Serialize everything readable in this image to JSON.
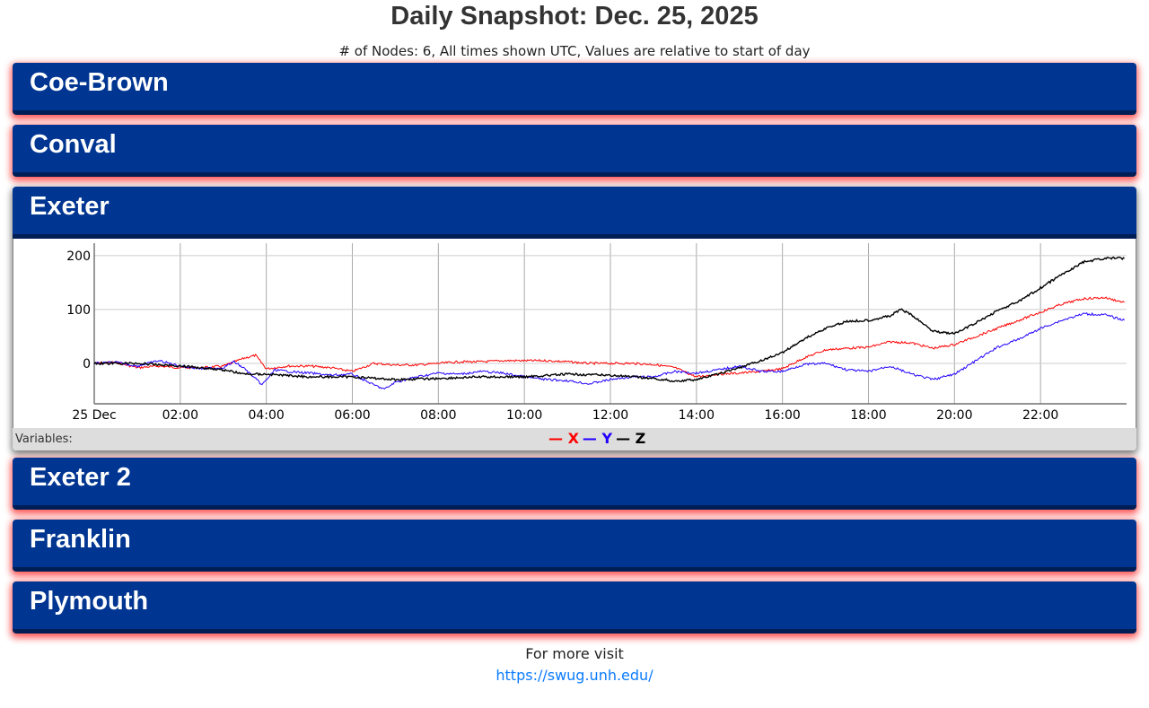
{
  "page": {
    "title": "Daily Snapshot: Dec. 25, 2025",
    "subtitle": "# of Nodes: 6, All times shown UTC, Values are relative to start of day",
    "footer_text": "For more visit",
    "footer_link": "https://swug.unh.edu/"
  },
  "nodes": [
    {
      "name": "Coe-Brown"
    },
    {
      "name": "Conval"
    },
    {
      "name": "Exeter",
      "expanded": true
    },
    {
      "name": "Exeter 2"
    },
    {
      "name": "Franklin"
    },
    {
      "name": "Plymouth"
    }
  ],
  "legend": {
    "label": "Variables:",
    "items": [
      {
        "name": "X",
        "color": "#ff0000"
      },
      {
        "name": "Y",
        "color": "#2200ff"
      },
      {
        "name": "Z",
        "color": "#000000"
      }
    ]
  },
  "chart_data": {
    "type": "line",
    "title": "Exeter",
    "xlabel": "",
    "ylabel": "",
    "x_unit": "hours UTC",
    "xlim": [
      0,
      24
    ],
    "ylim": [
      -75,
      223
    ],
    "x_ticks": [
      {
        "v": 0,
        "label": "25 Dec"
      },
      {
        "v": 2,
        "label": "02:00"
      },
      {
        "v": 4,
        "label": "04:00"
      },
      {
        "v": 6,
        "label": "06:00"
      },
      {
        "v": 8,
        "label": "08:00"
      },
      {
        "v": 10,
        "label": "10:00"
      },
      {
        "v": 12,
        "label": "12:00"
      },
      {
        "v": 14,
        "label": "14:00"
      },
      {
        "v": 16,
        "label": "16:00"
      },
      {
        "v": 18,
        "label": "18:00"
      },
      {
        "v": 20,
        "label": "20:00"
      },
      {
        "v": 22,
        "label": "22:00"
      }
    ],
    "y_ticks": [
      {
        "v": 0,
        "label": "0"
      },
      {
        "v": 100,
        "label": "100"
      },
      {
        "v": 200,
        "label": "200"
      }
    ],
    "grid": true,
    "series": [
      {
        "name": "X",
        "color": "#ff0000",
        "points": [
          [
            0,
            0
          ],
          [
            0.5,
            2
          ],
          [
            1,
            -8
          ],
          [
            1.5,
            -5
          ],
          [
            2,
            -8
          ],
          [
            2.5,
            -8
          ],
          [
            3,
            -5
          ],
          [
            3.5,
            10
          ],
          [
            3.75,
            15
          ],
          [
            4,
            -10
          ],
          [
            4.5,
            -5
          ],
          [
            5,
            -5
          ],
          [
            5.5,
            -8
          ],
          [
            6,
            -15
          ],
          [
            6.5,
            0
          ],
          [
            7,
            -3
          ],
          [
            7.5,
            -3
          ],
          [
            8,
            0
          ],
          [
            8.5,
            3
          ],
          [
            9,
            3
          ],
          [
            9.5,
            5
          ],
          [
            10,
            5
          ],
          [
            10.5,
            5
          ],
          [
            11,
            3
          ],
          [
            11.5,
            0
          ],
          [
            12,
            0
          ],
          [
            12.5,
            0
          ],
          [
            13,
            -2
          ],
          [
            13.5,
            -8
          ],
          [
            14,
            -25
          ],
          [
            14.5,
            -20
          ],
          [
            15,
            -18
          ],
          [
            15.5,
            -15
          ],
          [
            16,
            -10
          ],
          [
            16.5,
            10
          ],
          [
            17,
            25
          ],
          [
            17.5,
            28
          ],
          [
            18,
            30
          ],
          [
            18.5,
            40
          ],
          [
            19,
            38
          ],
          [
            19.5,
            28
          ],
          [
            20,
            35
          ],
          [
            20.5,
            50
          ],
          [
            21,
            65
          ],
          [
            21.5,
            80
          ],
          [
            22,
            95
          ],
          [
            22.5,
            110
          ],
          [
            23,
            120
          ],
          [
            23.5,
            122
          ],
          [
            23.95,
            113
          ]
        ]
      },
      {
        "name": "Y",
        "color": "#2200ff",
        "points": [
          [
            0,
            0
          ],
          [
            0.5,
            2
          ],
          [
            1,
            -5
          ],
          [
            1.5,
            5
          ],
          [
            2,
            -5
          ],
          [
            2.5,
            -10
          ],
          [
            3,
            -8
          ],
          [
            3.25,
            3
          ],
          [
            3.5,
            -10
          ],
          [
            3.9,
            -40
          ],
          [
            4.2,
            -12
          ],
          [
            4.5,
            -15
          ],
          [
            5,
            -18
          ],
          [
            5.5,
            -22
          ],
          [
            6,
            -20
          ],
          [
            6.5,
            -40
          ],
          [
            6.75,
            -48
          ],
          [
            7,
            -35
          ],
          [
            7.5,
            -25
          ],
          [
            8,
            -18
          ],
          [
            8.5,
            -20
          ],
          [
            9,
            -15
          ],
          [
            9.5,
            -18
          ],
          [
            10,
            -25
          ],
          [
            10.5,
            -30
          ],
          [
            11,
            -32
          ],
          [
            11.5,
            -38
          ],
          [
            12,
            -30
          ],
          [
            12.5,
            -25
          ],
          [
            13,
            -25
          ],
          [
            13.5,
            -15
          ],
          [
            14,
            -18
          ],
          [
            14.5,
            -12
          ],
          [
            15,
            -5
          ],
          [
            15.5,
            -15
          ],
          [
            16,
            -15
          ],
          [
            16.5,
            -2
          ],
          [
            17,
            0
          ],
          [
            17.5,
            -12
          ],
          [
            18,
            -15
          ],
          [
            18.5,
            -5
          ],
          [
            19,
            -20
          ],
          [
            19.5,
            -30
          ],
          [
            20,
            -20
          ],
          [
            20.5,
            5
          ],
          [
            21,
            30
          ],
          [
            21.5,
            45
          ],
          [
            22,
            65
          ],
          [
            22.5,
            80
          ],
          [
            23,
            92
          ],
          [
            23.5,
            90
          ],
          [
            23.95,
            80
          ]
        ]
      },
      {
        "name": "Z",
        "color": "#000000",
        "points": [
          [
            0,
            0
          ],
          [
            1,
            0
          ],
          [
            2,
            -5
          ],
          [
            2.5,
            -8
          ],
          [
            3,
            -12
          ],
          [
            3.5,
            -20
          ],
          [
            4,
            -20
          ],
          [
            5,
            -25
          ],
          [
            6,
            -25
          ],
          [
            7,
            -30
          ],
          [
            8,
            -28
          ],
          [
            9,
            -25
          ],
          [
            10,
            -25
          ],
          [
            11,
            -20
          ],
          [
            12,
            -22
          ],
          [
            13,
            -28
          ],
          [
            13.5,
            -33
          ],
          [
            14,
            -30
          ],
          [
            14.5,
            -20
          ],
          [
            15,
            -8
          ],
          [
            15.5,
            5
          ],
          [
            16,
            20
          ],
          [
            16.5,
            45
          ],
          [
            17,
            65
          ],
          [
            17.5,
            78
          ],
          [
            18,
            80
          ],
          [
            18.5,
            88
          ],
          [
            18.75,
            100
          ],
          [
            19,
            90
          ],
          [
            19.5,
            60
          ],
          [
            20,
            55
          ],
          [
            20.5,
            75
          ],
          [
            21,
            98
          ],
          [
            21.5,
            115
          ],
          [
            22,
            140
          ],
          [
            22.5,
            165
          ],
          [
            23,
            188
          ],
          [
            23.5,
            195
          ],
          [
            23.95,
            195
          ]
        ]
      }
    ]
  }
}
